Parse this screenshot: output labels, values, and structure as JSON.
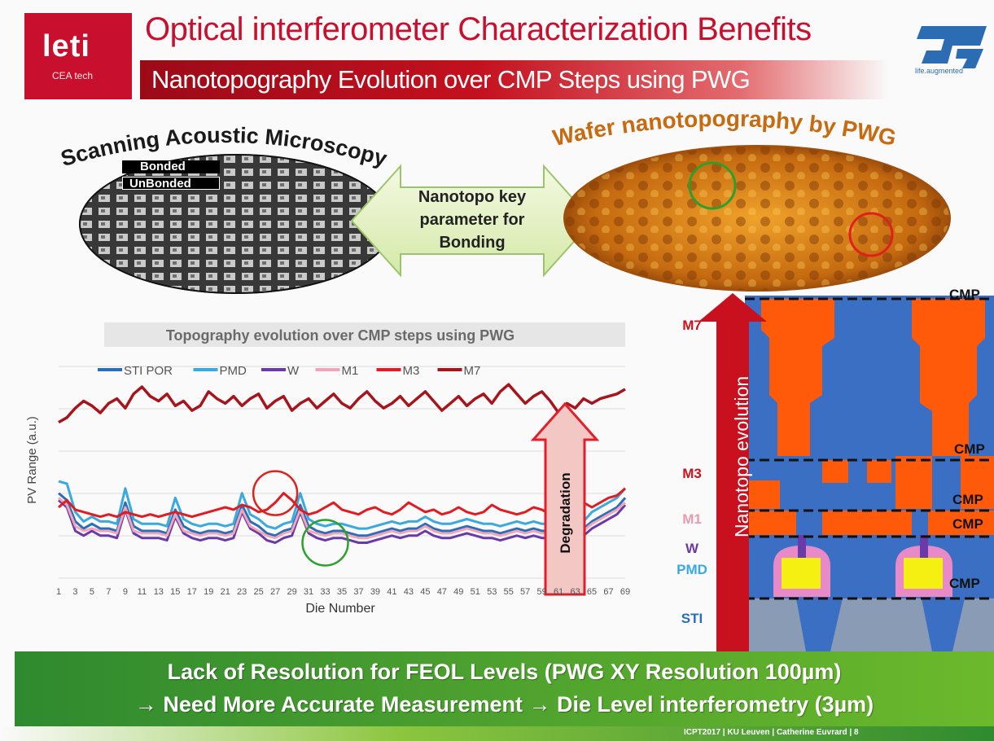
{
  "header": {
    "logo": {
      "word": "leti",
      "sub": "CEA tech"
    },
    "title": "Optical interferometer Characterization Benefits",
    "subtitle": "Nanotopography Evolution over CMP Steps using PWG",
    "st_tagline": "life.augmented"
  },
  "sam": {
    "title": "Scanning Acoustic Microscopy",
    "legend_bonded": "Bonded",
    "legend_unbonded": "UnBonded"
  },
  "arrow": {
    "lines": [
      "Nanotopo key",
      "parameter for",
      "Bonding"
    ]
  },
  "pwg": {
    "title": "Wafer nanotopography by PWG"
  },
  "chart_data": {
    "type": "line",
    "title": "Topography evolution over CMP steps using PWG",
    "xlabel": "Die Number",
    "ylabel": "PV Range (a.u.)",
    "legend_position": "top",
    "grid": true,
    "x_ticks": [
      "1",
      "3",
      "5",
      "7",
      "9",
      "11",
      "13",
      "15",
      "17",
      "19",
      "21",
      "23",
      "25",
      "27",
      "29",
      "31",
      "33",
      "35",
      "37",
      "39",
      "41",
      "43",
      "45",
      "47",
      "49",
      "51",
      "53",
      "55",
      "57",
      "59",
      "61",
      "63",
      "65",
      "67",
      "69"
    ],
    "ylim": [
      0,
      10
    ],
    "series": [
      {
        "name": "STI POR",
        "color": "#2a6ebb",
        "values": [
          3.6,
          3.3,
          2.4,
          2.1,
          2.3,
          2.1,
          2.1,
          2.0,
          3.2,
          2.2,
          2.0,
          2.0,
          2.0,
          1.9,
          2.9,
          2.2,
          2.0,
          1.9,
          2.0,
          2.0,
          1.9,
          2.0,
          3.1,
          2.4,
          2.2,
          1.9,
          1.8,
          2.0,
          2.1,
          3.1,
          2.2,
          2.0,
          1.9,
          2.0,
          2.0,
          1.9,
          1.8,
          1.8,
          1.9,
          2.0,
          2.1,
          2.0,
          2.1,
          2.1,
          2.3,
          2.1,
          2.0,
          2.0,
          2.1,
          2.2,
          2.1,
          2.0,
          2.0,
          1.9,
          2.0,
          2.1,
          2.0,
          2.1,
          2.0,
          2.0,
          2.0,
          2.0,
          2.0,
          2.1,
          2.4,
          2.6,
          2.8,
          3.0,
          3.4
        ]
      },
      {
        "name": "PMD",
        "color": "#3aa9e0",
        "values": [
          4.1,
          4.0,
          2.8,
          2.4,
          2.6,
          2.4,
          2.4,
          2.3,
          3.8,
          2.5,
          2.3,
          2.3,
          2.3,
          2.2,
          3.4,
          2.5,
          2.3,
          2.2,
          2.3,
          2.3,
          2.2,
          2.3,
          3.6,
          2.7,
          2.5,
          2.2,
          2.1,
          2.3,
          2.4,
          3.6,
          2.5,
          2.3,
          2.2,
          2.3,
          2.3,
          2.2,
          2.1,
          2.1,
          2.2,
          2.3,
          2.4,
          2.3,
          2.4,
          2.4,
          2.6,
          2.4,
          2.3,
          2.3,
          2.4,
          2.5,
          2.4,
          2.3,
          2.3,
          2.2,
          2.3,
          2.4,
          2.3,
          2.4,
          2.3,
          2.3,
          2.3,
          2.3,
          2.3,
          2.4,
          2.8,
          3.0,
          3.2,
          3.4,
          3.8
        ]
      },
      {
        "name": "W",
        "color": "#6a3aa8",
        "values": [
          3.3,
          3.0,
          2.0,
          1.8,
          2.0,
          1.8,
          1.8,
          1.7,
          2.9,
          1.9,
          1.7,
          1.7,
          1.7,
          1.6,
          2.6,
          1.9,
          1.7,
          1.6,
          1.7,
          1.7,
          1.6,
          1.7,
          2.8,
          2.1,
          1.9,
          1.6,
          1.5,
          1.7,
          1.8,
          2.8,
          1.9,
          1.7,
          1.6,
          1.7,
          1.7,
          1.6,
          1.5,
          1.5,
          1.6,
          1.7,
          1.8,
          1.7,
          1.8,
          1.8,
          2.0,
          1.8,
          1.7,
          1.7,
          1.8,
          1.9,
          1.8,
          1.7,
          1.7,
          1.6,
          1.7,
          1.8,
          1.7,
          1.8,
          1.7,
          1.7,
          1.7,
          1.7,
          1.7,
          1.8,
          2.1,
          2.3,
          2.5,
          2.7,
          3.1
        ]
      },
      {
        "name": "M1",
        "color": "#f0a6b8",
        "values": [
          3.4,
          3.1,
          2.2,
          2.0,
          2.1,
          2.0,
          2.0,
          1.9,
          3.0,
          2.0,
          1.9,
          1.9,
          1.9,
          1.8,
          2.7,
          2.0,
          1.9,
          1.8,
          1.9,
          1.9,
          1.8,
          1.9,
          2.9,
          2.2,
          2.0,
          1.8,
          1.7,
          1.9,
          2.0,
          2.9,
          2.0,
          1.9,
          1.8,
          1.9,
          1.9,
          1.8,
          1.7,
          1.7,
          1.8,
          1.9,
          2.0,
          1.9,
          2.0,
          2.0,
          2.2,
          2.0,
          1.9,
          1.9,
          2.0,
          2.1,
          2.0,
          1.9,
          1.9,
          1.8,
          1.9,
          2.0,
          1.9,
          2.0,
          1.9,
          1.9,
          1.9,
          1.9,
          1.9,
          2.0,
          2.3,
          2.5,
          2.7,
          2.9,
          3.2
        ]
      },
      {
        "name": "M3",
        "color": "#e01b22",
        "values": [
          3.0,
          3.3,
          2.9,
          2.8,
          2.7,
          2.6,
          2.7,
          2.6,
          2.8,
          2.7,
          2.6,
          2.7,
          2.6,
          2.7,
          2.8,
          2.7,
          2.6,
          2.7,
          2.8,
          2.9,
          3.0,
          2.9,
          3.1,
          3.0,
          2.8,
          2.9,
          3.2,
          3.6,
          3.3,
          2.9,
          2.7,
          2.8,
          3.0,
          3.2,
          2.9,
          2.8,
          2.7,
          2.9,
          3.0,
          2.8,
          2.7,
          2.9,
          3.2,
          3.0,
          2.8,
          2.9,
          2.7,
          2.8,
          3.0,
          2.8,
          2.7,
          2.8,
          3.1,
          2.9,
          2.8,
          2.7,
          2.8,
          3.0,
          2.9,
          2.7,
          2.8,
          2.9,
          3.0,
          3.2,
          3.0,
          3.2,
          3.4,
          3.5,
          3.8
        ]
      },
      {
        "name": "M7",
        "color": "#a8141c",
        "values": [
          6.6,
          6.8,
          7.2,
          7.5,
          7.3,
          7.0,
          7.4,
          7.6,
          7.2,
          7.8,
          8.1,
          7.7,
          7.5,
          7.8,
          7.3,
          7.5,
          7.1,
          7.3,
          7.9,
          7.6,
          7.4,
          7.7,
          7.3,
          7.6,
          7.8,
          7.2,
          7.5,
          7.7,
          7.1,
          7.4,
          7.6,
          7.2,
          7.5,
          7.8,
          7.4,
          7.2,
          7.6,
          7.9,
          7.5,
          7.2,
          7.4,
          7.7,
          7.3,
          7.6,
          7.9,
          7.5,
          7.1,
          7.4,
          7.7,
          7.3,
          7.6,
          7.8,
          7.4,
          7.9,
          8.2,
          7.8,
          7.4,
          7.7,
          7.9,
          7.5,
          7.0,
          7.4,
          7.2,
          7.6,
          7.4,
          7.6,
          7.7,
          7.8,
          8.0
        ]
      }
    ],
    "annotation": "Degradation"
  },
  "stack": {
    "arrow_label": "Nanotopo evolution",
    "levels": [
      {
        "name": "M7",
        "color": "#d0101a"
      },
      {
        "name": "M3",
        "color": "#d0101a"
      },
      {
        "name": "M1",
        "color": "#e89ab0"
      },
      {
        "name": "W",
        "color": "#6a3aa8"
      },
      {
        "name": "PMD",
        "color": "#3aa9e0"
      },
      {
        "name": "STI",
        "color": "#2a6ebb"
      }
    ],
    "cmp_label": "CMP"
  },
  "banner": {
    "line1": "Lack of Resolution for FEOL Levels (PWG XY Resolution 100µm)",
    "line2": "→ Need More Accurate Measurement → Die Level interferometry (3µm)"
  },
  "footer": "ICPT2017 | KU Leuven | Catherine Euvrard | 8"
}
